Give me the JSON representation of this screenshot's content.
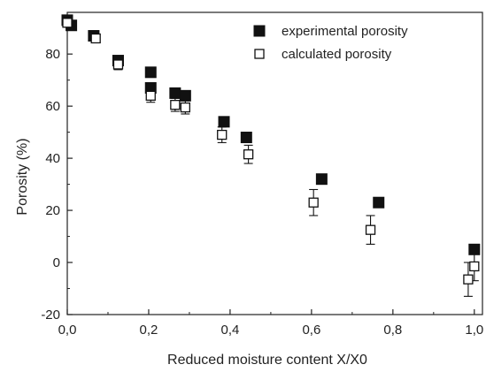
{
  "chart_data": {
    "type": "scatter",
    "title": "",
    "xlabel": "Reduced moisture content X/X0",
    "ylabel": "Porosity (%)",
    "xlim": [
      0.0,
      1.02
    ],
    "ylim": [
      -20,
      96
    ],
    "x_ticks": [
      0.0,
      0.2,
      0.4,
      0.6,
      0.8,
      1.0
    ],
    "x_tick_labels": [
      "0,0",
      "0,2",
      "0,4",
      "0,6",
      "0,8",
      "1,0"
    ],
    "y_ticks": [
      -20,
      0,
      20,
      40,
      60,
      80
    ],
    "y_tick_labels": [
      "-20",
      "0",
      "20",
      "40",
      "60",
      "80"
    ],
    "grid": false,
    "legend_position": "top-right",
    "series": [
      {
        "name": "experimental porosity",
        "marker": "filled-square",
        "color": "#111111",
        "points": [
          {
            "x": 0.0,
            "y": 93
          },
          {
            "x": 0.01,
            "y": 91
          },
          {
            "x": 0.065,
            "y": 87
          },
          {
            "x": 0.125,
            "y": 77.5
          },
          {
            "x": 0.205,
            "y": 73
          },
          {
            "x": 0.205,
            "y": 67
          },
          {
            "x": 0.265,
            "y": 65
          },
          {
            "x": 0.29,
            "y": 64
          },
          {
            "x": 0.385,
            "y": 54
          },
          {
            "x": 0.44,
            "y": 48
          },
          {
            "x": 0.625,
            "y": 32
          },
          {
            "x": 0.765,
            "y": 23
          },
          {
            "x": 1.0,
            "y": 5
          }
        ]
      },
      {
        "name": "calculated porosity",
        "marker": "open-square",
        "color": "#111111",
        "points": [
          {
            "x": 0.0,
            "y": 92,
            "err": 1.5
          },
          {
            "x": 0.07,
            "y": 86,
            "err": 1.5
          },
          {
            "x": 0.125,
            "y": 76,
            "err": 2
          },
          {
            "x": 0.205,
            "y": 64,
            "err": 2.5
          },
          {
            "x": 0.265,
            "y": 60.5,
            "err": 2.5
          },
          {
            "x": 0.29,
            "y": 59.5,
            "err": 2.5
          },
          {
            "x": 0.38,
            "y": 49,
            "err": 3
          },
          {
            "x": 0.445,
            "y": 41.5,
            "err": 3.5
          },
          {
            "x": 0.605,
            "y": 23,
            "err": 5
          },
          {
            "x": 0.745,
            "y": 12.5,
            "err": 5.5
          },
          {
            "x": 0.985,
            "y": -6.5,
            "err": 6.5
          },
          {
            "x": 1.0,
            "y": -1.5,
            "err": 5.5
          }
        ]
      }
    ]
  }
}
